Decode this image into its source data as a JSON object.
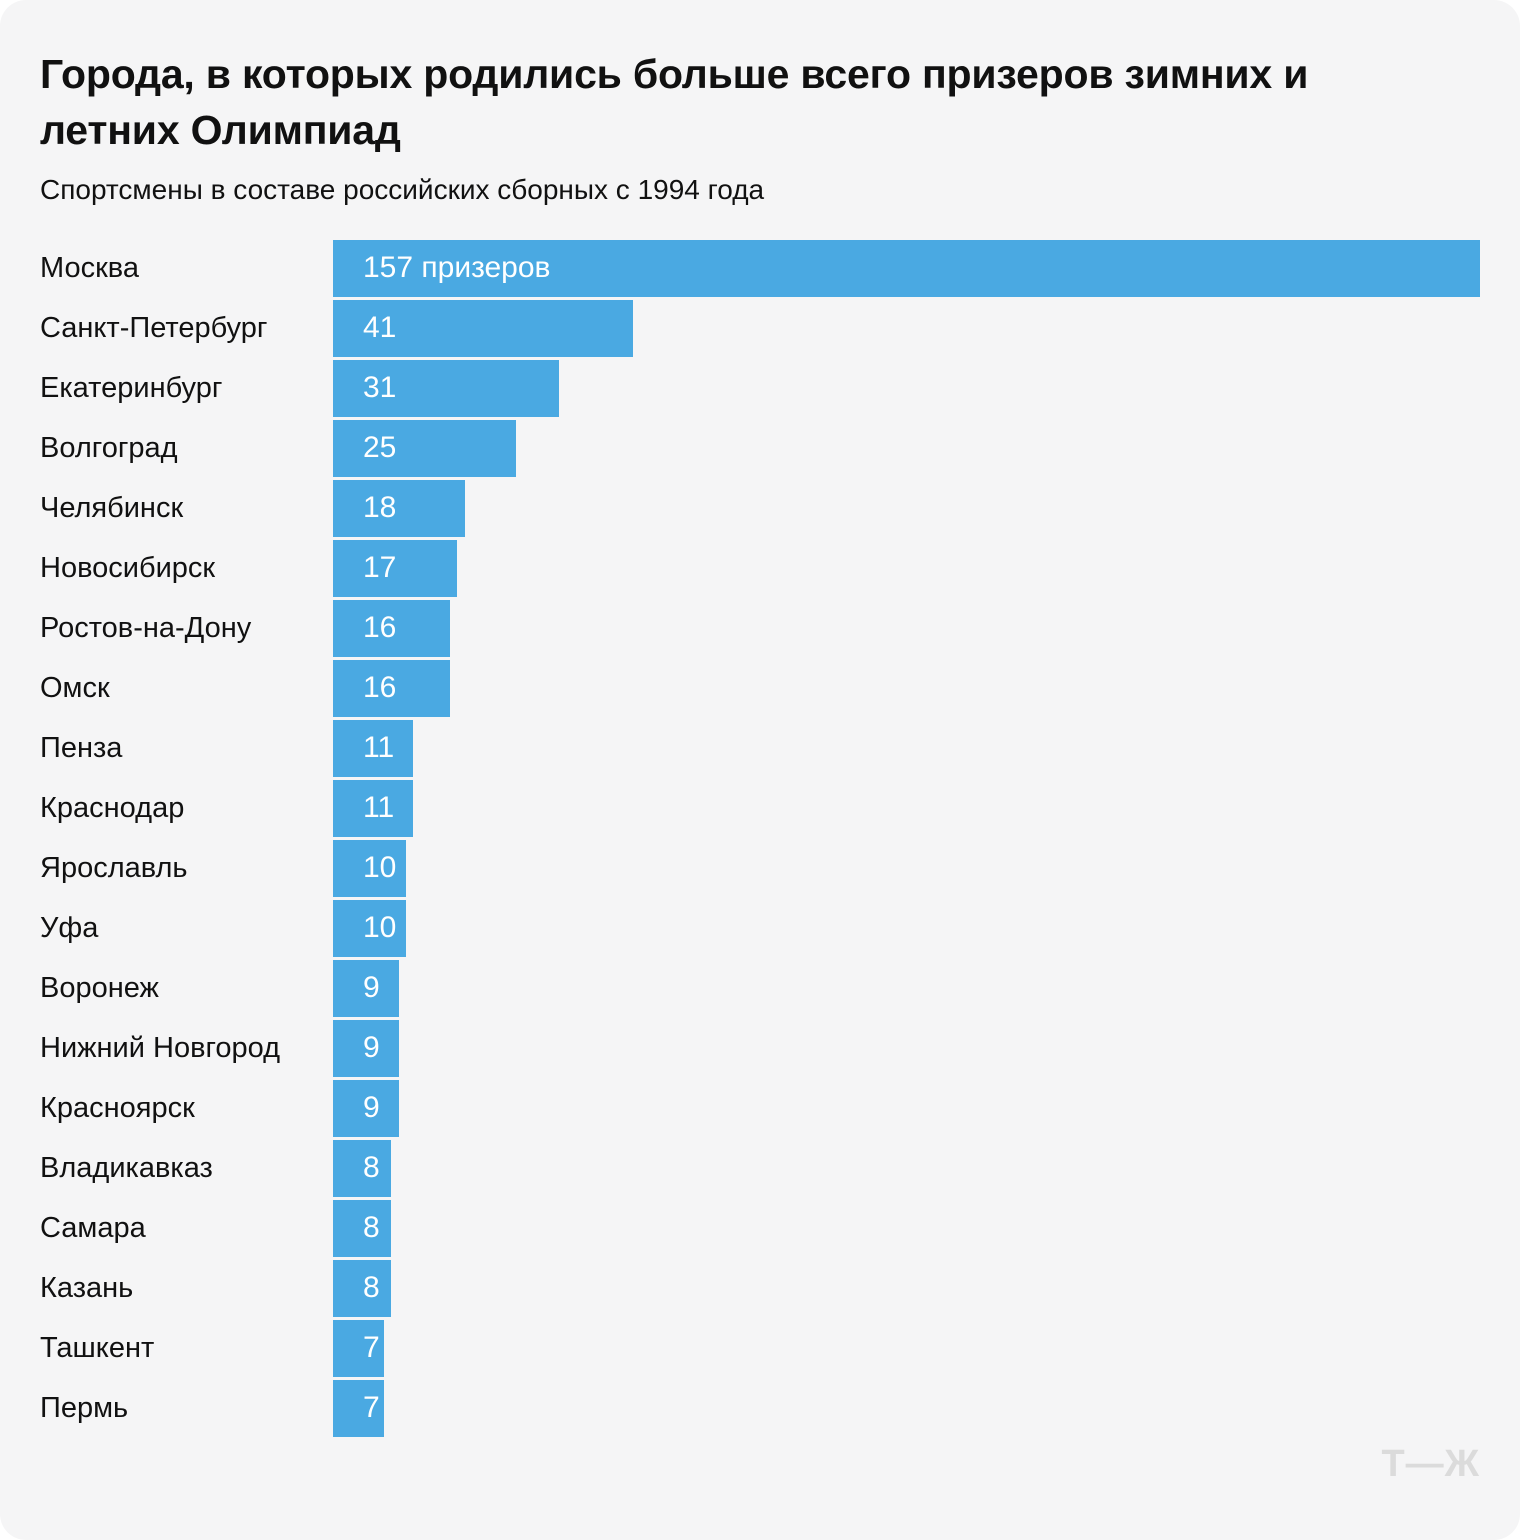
{
  "title": "Города, в которых родились больше всего призеров зимних и летних Олимпиад",
  "subtitle": "Спортсмены в составе российских сборных с 1994 года",
  "logo_text": "Т—Ж",
  "colors": {
    "bar": "#4aa9e2",
    "card_bg": "#f5f5f6",
    "text": "#111111",
    "bar_label": "#ffffff",
    "logo": "#dbdbdb"
  },
  "chart_data": {
    "type": "bar",
    "orientation": "horizontal",
    "title": "Города, в которых родились больше всего призеров зимних и летних Олимпиад",
    "subtitle": "Спортсмены в составе российских сборных с 1994 года",
    "value_suffix_first_bar": "призеров",
    "max_value": 157,
    "grid": false,
    "legend": false,
    "categories": [
      "Москва",
      "Санкт-Петербург",
      "Екатеринбург",
      "Волгоград",
      "Челябинск",
      "Новосибирск",
      "Ростов-на-Дону",
      "Омск",
      "Пенза",
      "Краснодар",
      "Ярославль",
      "Уфа",
      "Воронеж",
      "Нижний Новгород",
      "Красноярск",
      "Владикавказ",
      "Самара",
      "Казань",
      "Ташкент",
      "Пермь"
    ],
    "values": [
      157,
      41,
      31,
      25,
      18,
      17,
      16,
      16,
      11,
      11,
      10,
      10,
      9,
      9,
      9,
      8,
      8,
      8,
      7,
      7
    ],
    "bar_labels": [
      "157 призеров",
      "41",
      "31",
      "25",
      "18",
      "17",
      "16",
      "16",
      "11",
      "11",
      "10",
      "10",
      "9",
      "9",
      "9",
      "8",
      "8",
      "8",
      "7",
      "7"
    ]
  }
}
